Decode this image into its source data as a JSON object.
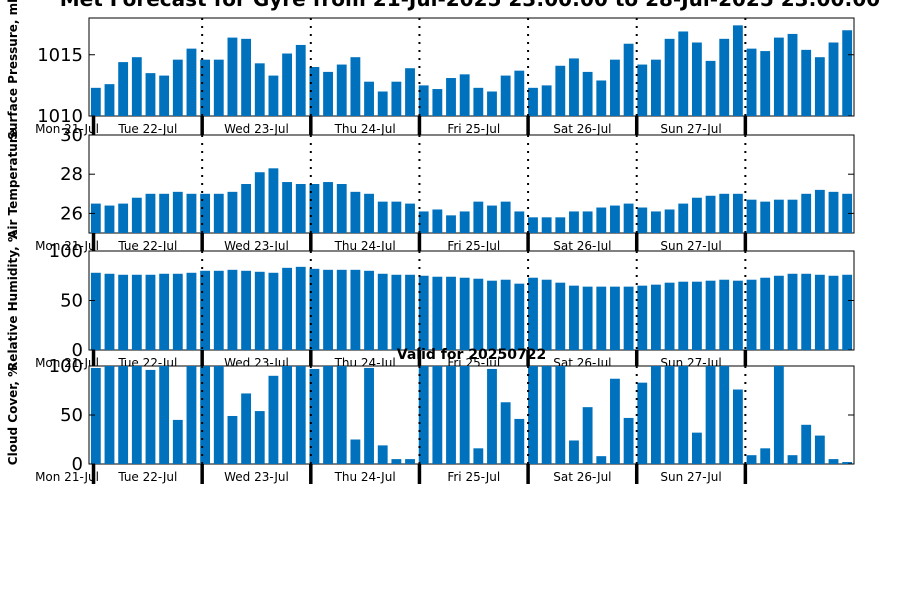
{
  "page_title": "Met Forecast for Gyre from 21-Jul-2025 23:00:00 to 28-Jul-2025 23:00:00",
  "colors": {
    "bar": "#0072bd",
    "axis": "#000000",
    "background": "#ffffff"
  },
  "chart_data": [
    {
      "type": "bar",
      "ylabel": "Surface Pressure, mb",
      "ylim": [
        1010,
        1018
      ],
      "yticks": [
        1010,
        1015
      ],
      "day_labels": [
        "Mon 21-Jul",
        "Tue 22-Jul",
        "Wed 23-Jul",
        "Thu 24-Jul",
        "Fri 25-Jul",
        "Sat 26-Jul",
        "Sun 27-Jul"
      ],
      "values": [
        1012.3,
        1012.6,
        1014.4,
        1014.8,
        1013.5,
        1013.3,
        1014.6,
        1015.5,
        1014.6,
        1014.6,
        1016.4,
        1016.3,
        1014.3,
        1013.3,
        1015.1,
        1015.8,
        1014.0,
        1013.6,
        1014.2,
        1014.8,
        1012.8,
        1012.0,
        1012.8,
        1013.9,
        1012.5,
        1012.2,
        1013.1,
        1013.4,
        1012.3,
        1012.0,
        1013.3,
        1013.7,
        1012.3,
        1012.5,
        1014.1,
        1014.7,
        1013.6,
        1012.9,
        1014.6,
        1015.9,
        1014.2,
        1014.6,
        1016.3,
        1016.9,
        1016.0,
        1014.5,
        1016.3,
        1017.4,
        1015.5,
        1015.3,
        1016.4,
        1016.7,
        1015.4,
        1014.8,
        1016.0,
        1017.0
      ]
    },
    {
      "type": "bar",
      "ylabel": "Air Temperature",
      "ylim": [
        25,
        30
      ],
      "yticks": [
        26,
        28,
        30
      ],
      "day_labels": [
        "Mon 21-Jul",
        "Tue 22-Jul",
        "Wed 23-Jul",
        "Thu 24-Jul",
        "Fri 25-Jul",
        "Sat 26-Jul",
        "Sun 27-Jul"
      ],
      "values": [
        26.5,
        26.4,
        26.5,
        26.8,
        27.0,
        27.0,
        27.1,
        27.0,
        27.0,
        27.0,
        27.1,
        27.5,
        28.1,
        28.3,
        27.6,
        27.5,
        27.5,
        27.6,
        27.5,
        27.1,
        27.0,
        26.6,
        26.6,
        26.5,
        26.1,
        26.2,
        25.9,
        26.1,
        26.6,
        26.4,
        26.6,
        26.1,
        25.8,
        25.8,
        25.8,
        26.1,
        26.1,
        26.3,
        26.4,
        26.5,
        26.3,
        26.1,
        26.2,
        26.5,
        26.8,
        26.9,
        27.0,
        27.0,
        26.7,
        26.6,
        26.7,
        26.7,
        27.0,
        27.2,
        27.1,
        27.0
      ]
    },
    {
      "type": "bar",
      "ylabel": "Relative Humidity, %",
      "ylim": [
        0,
        100
      ],
      "yticks": [
        0,
        50,
        100
      ],
      "day_labels": [
        "Mon 21-Jul",
        "Tue 22-Jul",
        "Wed 23-Jul",
        "Thu 24-Jul",
        "Fri 25-Jul",
        "Sat 26-Jul",
        "Sun 27-Jul"
      ],
      "values": [
        78,
        77,
        76,
        76,
        76,
        77,
        77,
        78,
        80,
        80,
        81,
        80,
        79,
        78,
        83,
        84,
        82,
        81,
        81,
        81,
        80,
        77,
        76,
        76,
        75,
        74,
        74,
        73,
        72,
        70,
        71,
        67,
        73,
        71,
        68,
        65,
        64,
        64,
        64,
        64,
        65,
        66,
        68,
        69,
        69,
        70,
        71,
        70,
        71,
        73,
        75,
        77,
        77,
        76,
        75,
        76
      ]
    },
    {
      "type": "bar",
      "title": "Valid for 20250722",
      "ylabel": "Cloud Cover, %",
      "ylim": [
        0,
        100
      ],
      "yticks": [
        0,
        50,
        100
      ],
      "day_labels": [
        "Mon 21-Jul",
        "Tue 22-Jul",
        "Wed 23-Jul",
        "Thu 24-Jul",
        "Fri 25-Jul",
        "Sat 26-Jul",
        "Sun 27-Jul"
      ],
      "values": [
        98,
        100,
        100,
        100,
        96,
        100,
        45,
        100,
        100,
        100,
        49,
        72,
        54,
        90,
        100,
        100,
        97,
        100,
        100,
        25,
        98,
        19,
        5,
        5,
        100,
        100,
        100,
        100,
        16,
        97,
        63,
        46,
        100,
        100,
        100,
        24,
        58,
        8,
        87,
        47,
        83,
        100,
        100,
        100,
        32,
        100,
        100,
        76,
        9,
        16,
        100,
        9,
        40,
        29,
        5,
        2
      ]
    }
  ]
}
